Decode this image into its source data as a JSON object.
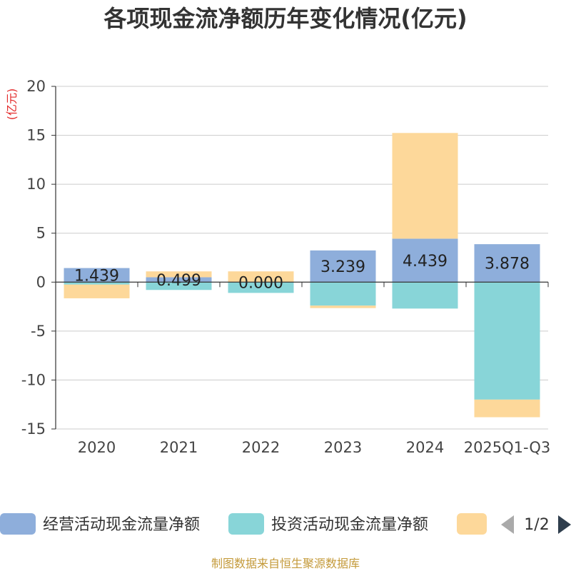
{
  "chart_data": {
    "type": "bar",
    "stacked": true,
    "title": "各项现金流净额历年变化情况(亿元)",
    "ylabel": "(亿元)",
    "categories": [
      "2020",
      "2021",
      "2022",
      "2023",
      "2024",
      "2025Q1-Q3"
    ],
    "ylim": [
      -15,
      20
    ],
    "yticks": [
      20,
      15,
      10,
      5,
      0,
      -5,
      -10,
      -15
    ],
    "grid": true,
    "legend_position": "bottom",
    "series": [
      {
        "name": "经营活动现金流量净额",
        "color": "#8eaedb",
        "values": [
          1.439,
          0.499,
          0.0,
          3.239,
          4.439,
          3.878
        ],
        "labels": [
          "1.439",
          "0.499",
          "0.000",
          "3.239",
          "4.439",
          "3.878"
        ]
      },
      {
        "name": "投资活动现金流量净额",
        "color": "#88d5d8",
        "values": [
          -0.25,
          -0.8,
          -1.1,
          -2.4,
          -2.7,
          -12.0
        ]
      },
      {
        "name": "",
        "color": "#fdd89a",
        "values": [
          -1.4,
          0.6,
          1.1,
          -0.25,
          10.8,
          -1.8
        ]
      }
    ],
    "pager": "1/2",
    "source": "制图数据来自恒生聚源数据库",
    "colors": {
      "title": "#333333",
      "unit": "#e32a2a",
      "axis": "#333333",
      "grid": "#cccccc",
      "source": "#c49a3a",
      "pager_prev": "#aaaaaa",
      "pager_next": "#2f3e4d"
    }
  }
}
